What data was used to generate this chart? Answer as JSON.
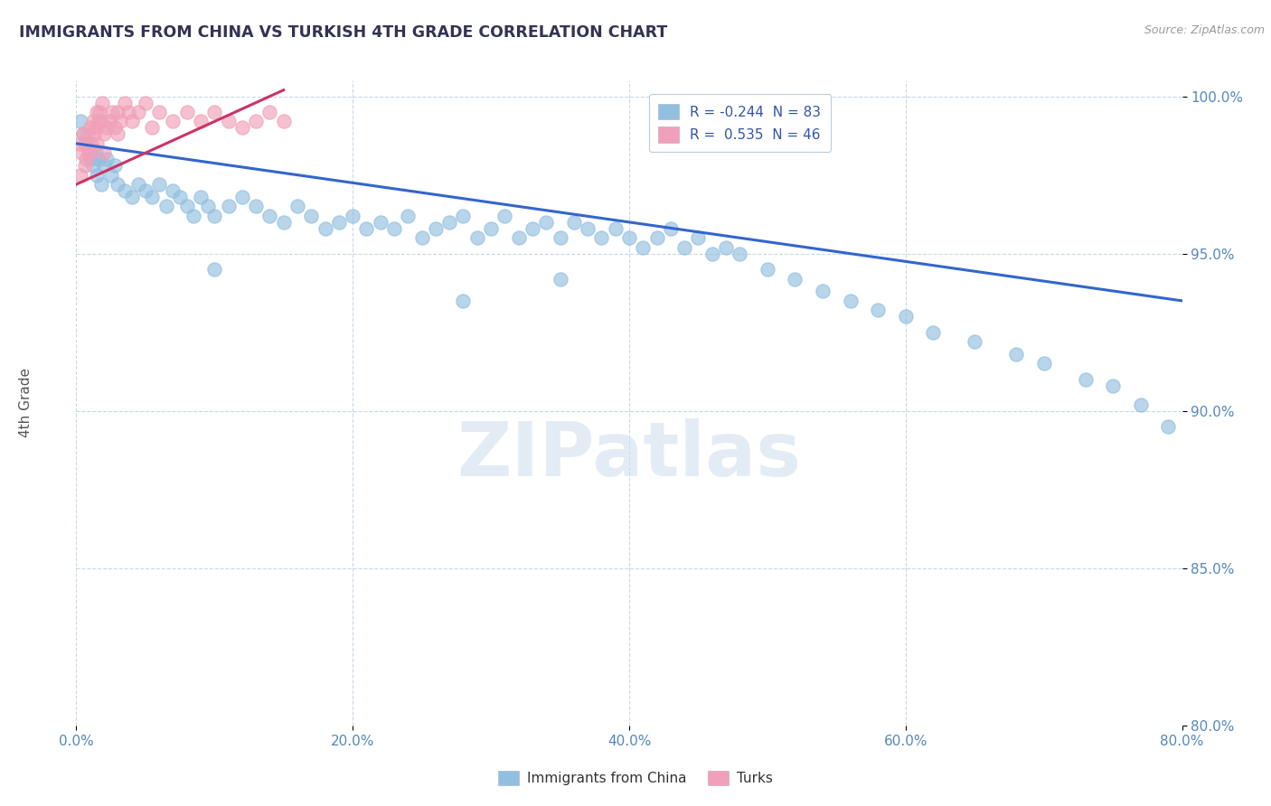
{
  "title": "IMMIGRANTS FROM CHINA VS TURKISH 4TH GRADE CORRELATION CHART",
  "source": "Source: ZipAtlas.com",
  "ylabel": "4th Grade",
  "r_blue": -0.244,
  "n_blue": 83,
  "r_pink": 0.535,
  "n_pink": 46,
  "xlim": [
    0.0,
    80.0
  ],
  "ylim": [
    80.0,
    100.5
  ],
  "xticks": [
    0.0,
    20.0,
    40.0,
    60.0,
    80.0
  ],
  "yticks": [
    80.0,
    85.0,
    90.0,
    95.0,
    100.0
  ],
  "blue_color": "#92bfe0",
  "pink_color": "#f0a0b8",
  "trend_blue": "#3366cc",
  "trend_pink": "#cc3366",
  "watermark": "ZIPatlas",
  "blue_trend_x": [
    0.0,
    80.0
  ],
  "blue_trend_y": [
    98.5,
    93.5
  ],
  "pink_trend_x": [
    0.0,
    15.0
  ],
  "pink_trend_y": [
    97.2,
    100.2
  ],
  "blue_scatter_x": [
    0.3,
    0.5,
    0.8,
    1.0,
    1.2,
    1.4,
    1.5,
    1.6,
    1.8,
    2.0,
    2.2,
    2.5,
    2.8,
    3.0,
    3.5,
    4.0,
    4.5,
    5.0,
    5.5,
    6.0,
    6.5,
    7.0,
    7.5,
    8.0,
    8.5,
    9.0,
    9.5,
    10.0,
    11.0,
    12.0,
    13.0,
    14.0,
    15.0,
    16.0,
    17.0,
    18.0,
    19.0,
    20.0,
    21.0,
    22.0,
    23.0,
    24.0,
    25.0,
    26.0,
    27.0,
    28.0,
    29.0,
    30.0,
    31.0,
    32.0,
    33.0,
    34.0,
    35.0,
    36.0,
    37.0,
    38.0,
    39.0,
    40.0,
    41.0,
    42.0,
    43.0,
    44.0,
    45.0,
    46.0,
    47.0,
    48.0,
    50.0,
    52.0,
    54.0,
    56.0,
    58.0,
    60.0,
    62.0,
    65.0,
    68.0,
    70.0,
    73.0,
    75.0,
    77.0,
    79.0,
    10.0,
    28.0,
    35.0
  ],
  "blue_scatter_y": [
    99.2,
    98.8,
    98.5,
    98.0,
    97.8,
    98.2,
    97.5,
    98.0,
    97.2,
    97.8,
    98.0,
    97.5,
    97.8,
    97.2,
    97.0,
    96.8,
    97.2,
    97.0,
    96.8,
    97.2,
    96.5,
    97.0,
    96.8,
    96.5,
    96.2,
    96.8,
    96.5,
    96.2,
    96.5,
    96.8,
    96.5,
    96.2,
    96.0,
    96.5,
    96.2,
    95.8,
    96.0,
    96.2,
    95.8,
    96.0,
    95.8,
    96.2,
    95.5,
    95.8,
    96.0,
    96.2,
    95.5,
    95.8,
    96.2,
    95.5,
    95.8,
    96.0,
    95.5,
    96.0,
    95.8,
    95.5,
    95.8,
    95.5,
    95.2,
    95.5,
    95.8,
    95.2,
    95.5,
    95.0,
    95.2,
    95.0,
    94.5,
    94.2,
    93.8,
    93.5,
    93.2,
    93.0,
    92.5,
    92.2,
    91.8,
    91.5,
    91.0,
    90.8,
    90.2,
    89.5,
    94.5,
    93.5,
    94.2
  ],
  "pink_scatter_x": [
    0.2,
    0.4,
    0.5,
    0.6,
    0.7,
    0.8,
    0.9,
    1.0,
    1.1,
    1.2,
    1.3,
    1.4,
    1.5,
    1.6,
    1.7,
    1.8,
    1.9,
    2.0,
    2.2,
    2.4,
    2.6,
    2.8,
    3.0,
    3.2,
    3.5,
    3.8,
    4.0,
    4.5,
    5.0,
    6.0,
    7.0,
    8.0,
    9.0,
    10.0,
    11.0,
    12.0,
    13.0,
    14.0,
    15.0,
    0.3,
    0.6,
    1.0,
    1.5,
    2.0,
    3.0,
    5.5
  ],
  "pink_scatter_y": [
    98.5,
    98.2,
    98.8,
    98.5,
    98.0,
    98.8,
    98.2,
    99.0,
    98.5,
    99.2,
    98.8,
    99.0,
    99.5,
    99.2,
    99.5,
    99.2,
    99.8,
    98.8,
    99.0,
    99.2,
    99.5,
    99.0,
    99.5,
    99.2,
    99.8,
    99.5,
    99.2,
    99.5,
    99.8,
    99.5,
    99.2,
    99.5,
    99.2,
    99.5,
    99.2,
    99.0,
    99.2,
    99.5,
    99.2,
    97.5,
    97.8,
    98.2,
    98.5,
    98.2,
    98.8,
    99.0
  ]
}
